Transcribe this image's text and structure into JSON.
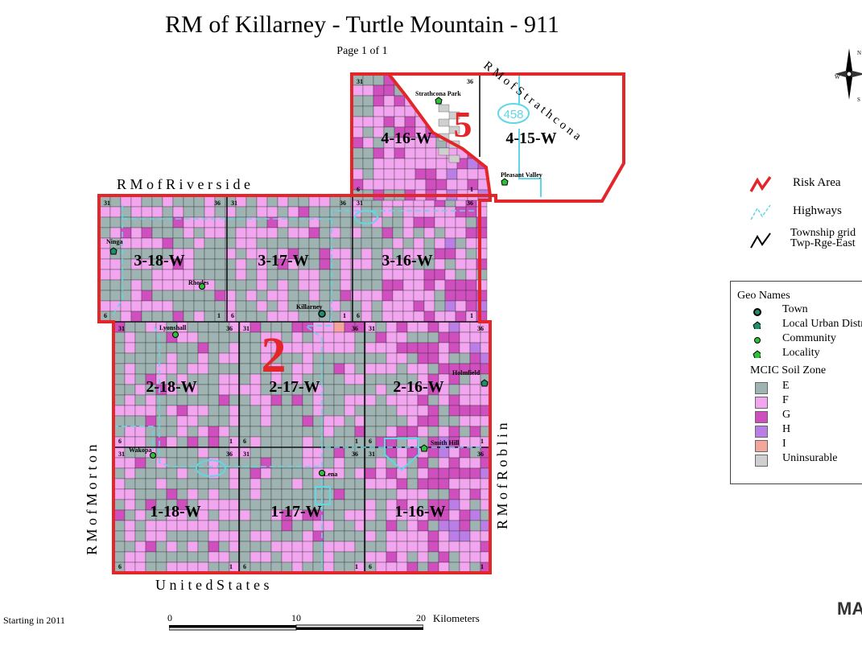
{
  "title": "RM of Killarney - Turtle Mountain - 911",
  "subtitle": "Page 1 of 1",
  "neighbors": {
    "north": "R M   o f   R i v e r s i d e",
    "south": "U n i t e d     S t a t e s",
    "west": "R M   o f   M o r t o n",
    "east": "R M   o f   R o b l i n",
    "northeast": "R M   o f   S t r a t h c o n a"
  },
  "risk_area_labels": [
    "5",
    "2"
  ],
  "townships": [
    "4-16-W",
    "4-15-W",
    "3-18-W",
    "3-17-W",
    "3-16-W",
    "2-18-W",
    "2-17-W",
    "2-16-W",
    "1-18-W",
    "1-17-W",
    "1-16-W"
  ],
  "places": [
    {
      "name": "Strathcona Park",
      "type": "Locality"
    },
    {
      "name": "Pleasant Valley",
      "type": "Locality"
    },
    {
      "name": "Ninga",
      "type": "Local Urban District"
    },
    {
      "name": "Rhodes",
      "type": "Community"
    },
    {
      "name": "Killarney",
      "type": "Town"
    },
    {
      "name": "Lyonshall",
      "type": "Community"
    },
    {
      "name": "Holmfield",
      "type": "Local Urban District"
    },
    {
      "name": "Wakopa",
      "type": "Community"
    },
    {
      "name": "Smith Hill",
      "type": "Locality"
    },
    {
      "name": "Lena",
      "type": "Community"
    }
  ],
  "highway_shield": "458",
  "section_numbers": [
    "31",
    "36",
    "6",
    "1"
  ],
  "legend": {
    "risk_area": "Risk Area",
    "highways": "Highways",
    "township_grid_1": "Township grid",
    "township_grid_2": "Twp-Rge-East",
    "geo_names_title": "Geo Names",
    "geo_names": [
      "Town",
      "Local Urban District",
      "Community",
      "Locality"
    ],
    "soil_title": "MCIC Soil Zone",
    "soil_zones": [
      {
        "label": "E",
        "color": "#9fb4b2"
      },
      {
        "label": "F",
        "color": "#f3a6f0"
      },
      {
        "label": "G",
        "color": "#cf4fbf"
      },
      {
        "label": "H",
        "color": "#bb7de6"
      },
      {
        "label": "I",
        "color": "#f4a69a"
      },
      {
        "label": "Uninsurable",
        "color": "#cfcfcf"
      }
    ]
  },
  "compass": {
    "n": "N",
    "w": "W",
    "s": "S"
  },
  "scale": {
    "ticks": [
      "0",
      "10",
      "20"
    ],
    "unit": "Kilometers"
  },
  "footer": "Starting in 2011",
  "logo": "MASC",
  "colors": {
    "risk": "#e3262a",
    "highway": "#5fd7e6",
    "grid": "#111111"
  }
}
